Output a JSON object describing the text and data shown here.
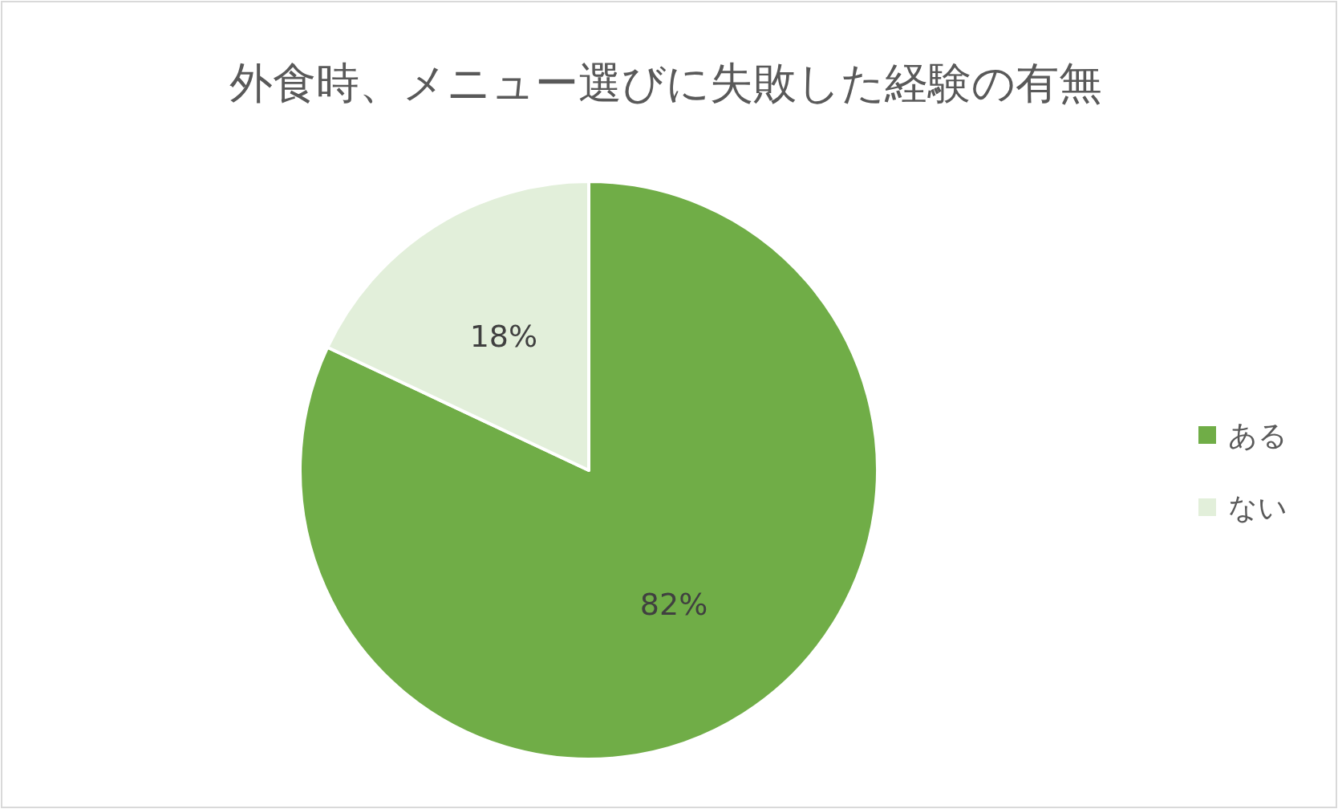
{
  "chart_data": {
    "type": "pie",
    "title": "外食時、メニュー選びに失敗した経験の有無",
    "categories": [
      "ある",
      "ない"
    ],
    "values": [
      82,
      18
    ],
    "colors": [
      "#70ad47",
      "#e2efda"
    ],
    "value_labels": [
      "82%",
      "18%"
    ],
    "legend": "right"
  }
}
